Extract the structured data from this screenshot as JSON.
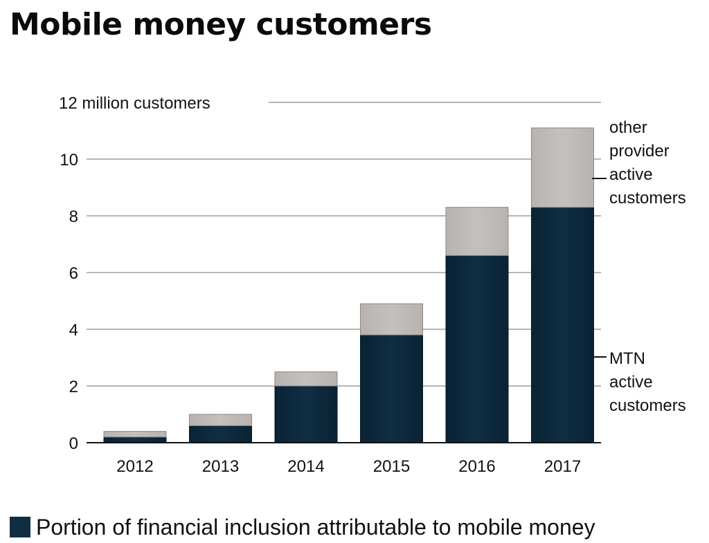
{
  "title": "Mobile money customers",
  "chart_data": {
    "type": "bar",
    "stacked": true,
    "categories": [
      "2012",
      "2013",
      "2014",
      "2015",
      "2016",
      "2017"
    ],
    "series": [
      {
        "name": "MTN active customers",
        "values": [
          0.2,
          0.6,
          2.0,
          3.8,
          6.6,
          8.3
        ],
        "color": "#0f2e44"
      },
      {
        "name": "other provider active customers",
        "values": [
          0.2,
          0.4,
          0.5,
          1.1,
          1.7,
          2.8
        ],
        "color": "#c4c0bd"
      }
    ],
    "ylim": [
      0,
      12
    ],
    "yticks": [
      0,
      2,
      4,
      6,
      8,
      10,
      12
    ],
    "ytick_labels": [
      "0",
      "2",
      "4",
      "6",
      "8",
      "10",
      "12 million customers"
    ],
    "grid": true,
    "annotations": {
      "top_label_lines": [
        "other",
        "provider",
        "active",
        "customers"
      ],
      "bottom_label_lines": [
        "MTN",
        "active",
        "customers"
      ]
    }
  },
  "legend": {
    "text": "Portion of financial inclusion attributable to mobile money",
    "color": "#0f2e44"
  }
}
